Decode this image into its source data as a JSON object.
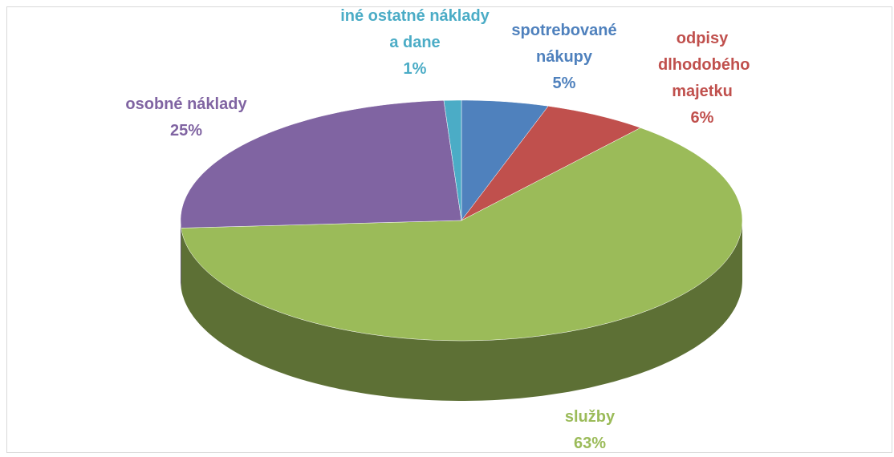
{
  "chart_data": {
    "type": "pie",
    "categories": [
      "spotrebované nákupy",
      "odpisy dlhodobého majetku",
      "služby",
      "osobné náklady",
      "iné ostatné náklady a dane"
    ],
    "values": [
      5,
      6,
      63,
      25,
      1
    ],
    "value_labels": [
      "5%",
      "6%",
      "63%",
      "25%",
      "1%"
    ],
    "colors": [
      "#4f81bd",
      "#c0504d",
      "#9bbb59",
      "#8064a2",
      "#4bacc6"
    ]
  }
}
